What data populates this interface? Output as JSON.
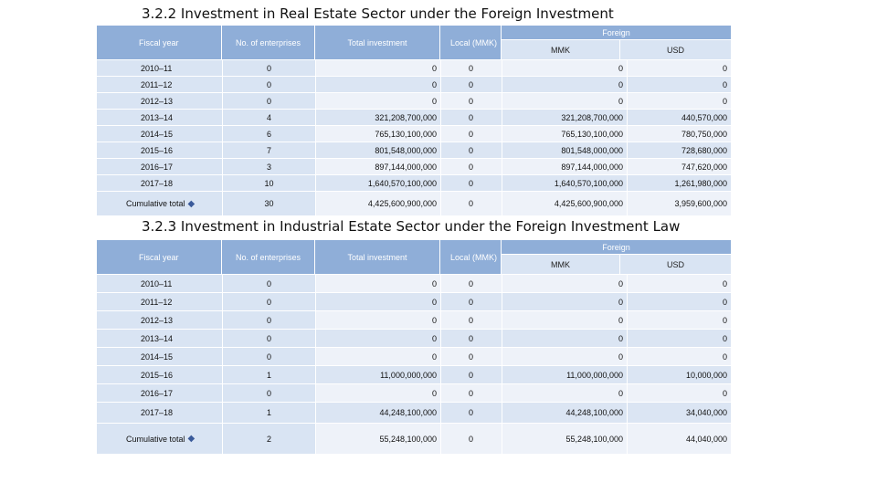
{
  "table1": {
    "title": "3.2.2 Investment in Real Estate Sector under the Foreign Investment",
    "headers": {
      "fiscal_year": "Fiscal year",
      "enterprises": "No. of enterprises",
      "total": "Total investment",
      "local": "Local (MMK)",
      "foreign": "Foreign",
      "mmk": "MMK",
      "usd": "USD"
    },
    "rows": [
      {
        "fy": "2010–11",
        "ne": "0",
        "ti": "0",
        "lo": "0",
        "mmk": "0",
        "usd": "0"
      },
      {
        "fy": "2011–12",
        "ne": "0",
        "ti": "0",
        "lo": "0",
        "mmk": "0",
        "usd": "0"
      },
      {
        "fy": "2012–13",
        "ne": "0",
        "ti": "0",
        "lo": "0",
        "mmk": "0",
        "usd": "0"
      },
      {
        "fy": "2013–14",
        "ne": "4",
        "ti": "321,208,700,000",
        "lo": "0",
        "mmk": "321,208,700,000",
        "usd": "440,570,000"
      },
      {
        "fy": "2014–15",
        "ne": "6",
        "ti": "765,130,100,000",
        "lo": "0",
        "mmk": "765,130,100,000",
        "usd": "780,750,000"
      },
      {
        "fy": "2015–16",
        "ne": "7",
        "ti": "801,548,000,000",
        "lo": "0",
        "mmk": "801,548,000,000",
        "usd": "728,680,000"
      },
      {
        "fy": "2016–17",
        "ne": "3",
        "ti": "897,144,000,000",
        "lo": "0",
        "mmk": "897,144,000,000",
        "usd": "747,620,000"
      },
      {
        "fy": "2017–18",
        "ne": "10",
        "ti": "1,640,570,100,000",
        "lo": "0",
        "mmk": "1,640,570,100,000",
        "usd": "1,261,980,000"
      }
    ],
    "total": {
      "fy": "Cumulative total",
      "ne": "30",
      "ti": "4,425,600,900,000",
      "lo": "0",
      "mmk": "4,425,600,900,000",
      "usd": "3,959,600,000"
    }
  },
  "table2": {
    "title": "3.2.3 Investment in Industrial Estate Sector under the Foreign Investment Law",
    "headers": {
      "fiscal_year": "Fiscal year",
      "enterprises": "No. of enterprises",
      "total": "Total investment",
      "local": "Local (MMK)",
      "foreign": "Foreign",
      "mmk": "MMK",
      "usd": "USD"
    },
    "rows": [
      {
        "fy": "2010–11",
        "ne": "0",
        "ti": "0",
        "lo": "0",
        "mmk": "0",
        "usd": "0"
      },
      {
        "fy": "2011–12",
        "ne": "0",
        "ti": "0",
        "lo": "0",
        "mmk": "0",
        "usd": "0"
      },
      {
        "fy": "2012–13",
        "ne": "0",
        "ti": "0",
        "lo": "0",
        "mmk": "0",
        "usd": "0"
      },
      {
        "fy": "2013–14",
        "ne": "0",
        "ti": "0",
        "lo": "0",
        "mmk": "0",
        "usd": "0"
      },
      {
        "fy": "2014–15",
        "ne": "0",
        "ti": "0",
        "lo": "0",
        "mmk": "0",
        "usd": "0"
      },
      {
        "fy": "2015–16",
        "ne": "1",
        "ti": "11,000,000,000",
        "lo": "0",
        "mmk": "11,000,000,000",
        "usd": "10,000,000"
      },
      {
        "fy": "2016–17",
        "ne": "0",
        "ti": "0",
        "lo": "0",
        "mmk": "0",
        "usd": "0"
      },
      {
        "fy": "2017–18",
        "ne": "1",
        "ti": "44,248,100,000",
        "lo": "0",
        "mmk": "44,248,100,000",
        "usd": "34,040,000"
      }
    ],
    "total": {
      "fy": "Cumulative total",
      "ne": "2",
      "ti": "55,248,100,000",
      "lo": "0",
      "mmk": "55,248,100,000",
      "usd": "44,040,000"
    }
  },
  "icons": {
    "total_marker": "diamond-bullet-icon"
  },
  "colors": {
    "header": "#8faed8",
    "subheader": "#d9e4f3",
    "row": "#eef2f9"
  }
}
